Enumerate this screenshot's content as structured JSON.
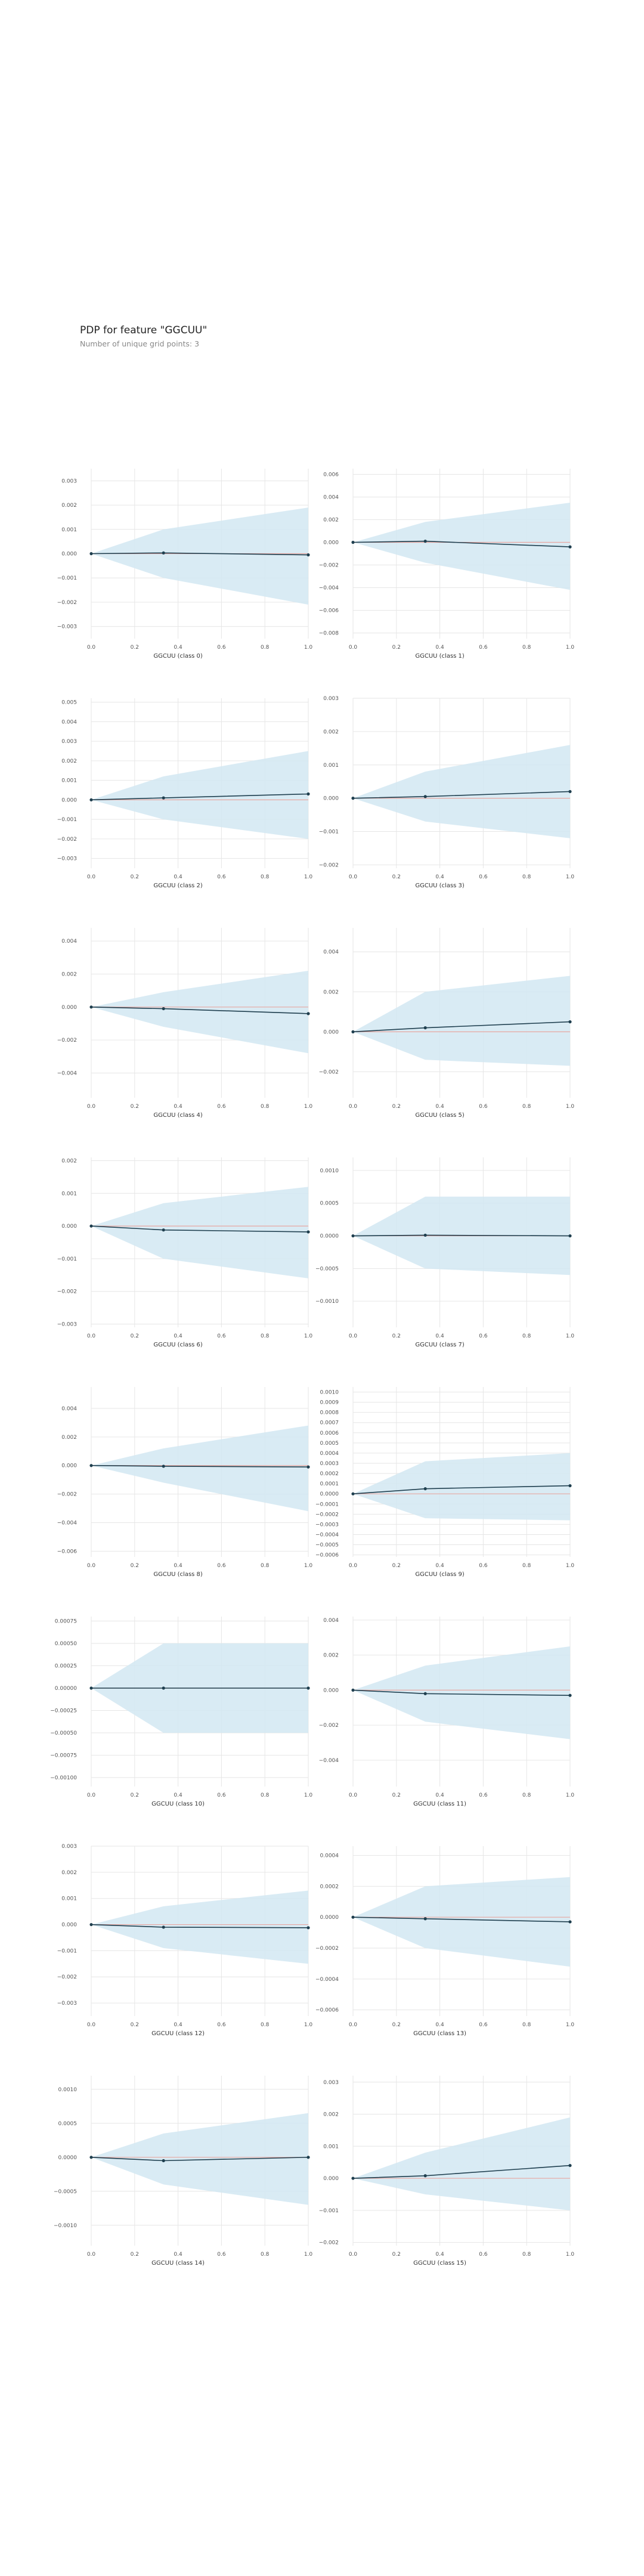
{
  "header": {
    "title": "PDP for feature \"GGCUU\"",
    "subtitle": "Number of unique grid points: 3"
  },
  "colors": {
    "band": "#d2e8f2",
    "line": "#1f3f4f",
    "zero_line": "#e8a7a1",
    "grid": "#e6e6e6"
  },
  "chart_data": [
    {
      "type": "line",
      "xlabel": "GGCUU (class 0)",
      "x": [
        0,
        0.333,
        1
      ],
      "y": [
        0,
        3e-05,
        -5e-05
      ],
      "upper": [
        0,
        0.001,
        0.0019
      ],
      "lower": [
        0,
        -0.001,
        -0.0021
      ],
      "yticks": [
        -0.003,
        -0.002,
        -0.001,
        0,
        0.001,
        0.002,
        0.003
      ],
      "ytick_labels": [
        "−0.003",
        "−0.002",
        "−0.001",
        "0.000",
        "0.001",
        "0.002",
        "0.003"
      ],
      "ylim": [
        -0.0035,
        0.0035
      ],
      "xticks": [
        0,
        0.2,
        0.4,
        0.6,
        0.8,
        1
      ],
      "xtick_labels": [
        "0.0",
        "0.2",
        "0.4",
        "0.6",
        "0.8",
        "1.0"
      ],
      "grid": true
    },
    {
      "type": "line",
      "xlabel": "GGCUU (class 1)",
      "x": [
        0,
        0.333,
        1
      ],
      "y": [
        0,
        0.0001,
        -0.0004
      ],
      "upper": [
        0,
        0.0018,
        0.0035
      ],
      "lower": [
        0,
        -0.0018,
        -0.0042
      ],
      "yticks": [
        -0.008,
        -0.006,
        -0.004,
        -0.002,
        0,
        0.002,
        0.004,
        0.006
      ],
      "ytick_labels": [
        "−0.008",
        "−0.006",
        "−0.004",
        "−0.002",
        "0.000",
        "0.002",
        "0.004",
        "0.006"
      ],
      "ylim": [
        -0.0085,
        0.0065
      ],
      "xticks": [
        0,
        0.2,
        0.4,
        0.6,
        0.8,
        1
      ],
      "xtick_labels": [
        "0.0",
        "0.2",
        "0.4",
        "0.6",
        "0.8",
        "1.0"
      ],
      "grid": true
    },
    {
      "type": "line",
      "xlabel": "GGCUU (class 2)",
      "x": [
        0,
        0.333,
        1
      ],
      "y": [
        0,
        0.0001,
        0.0003
      ],
      "upper": [
        0,
        0.0012,
        0.0025
      ],
      "lower": [
        0,
        -0.001,
        -0.002
      ],
      "yticks": [
        -0.003,
        -0.002,
        -0.001,
        0,
        0.001,
        0.002,
        0.003,
        0.004,
        0.005
      ],
      "ytick_labels": [
        "−0.003",
        "−0.002",
        "−0.001",
        "0.000",
        "0.001",
        "0.002",
        "0.003",
        "0.004",
        "0.005"
      ],
      "ylim": [
        -0.0035,
        0.0052
      ],
      "xticks": [
        0,
        0.2,
        0.4,
        0.6,
        0.8,
        1
      ],
      "xtick_labels": [
        "0.0",
        "0.2",
        "0.4",
        "0.6",
        "0.8",
        "1.0"
      ],
      "grid": true
    },
    {
      "type": "line",
      "xlabel": "GGCUU (class 3)",
      "x": [
        0,
        0.333,
        1
      ],
      "y": [
        0,
        5e-05,
        0.0002
      ],
      "upper": [
        0,
        0.0008,
        0.0016
      ],
      "lower": [
        0,
        -0.0007,
        -0.0012
      ],
      "yticks": [
        -0.002,
        -0.001,
        0,
        0.001,
        0.002,
        0.003
      ],
      "ytick_labels": [
        "−0.002",
        "−0.001",
        "0.000",
        "0.001",
        "0.002",
        "0.003"
      ],
      "ylim": [
        -0.0021,
        0.003
      ],
      "xticks": [
        0,
        0.2,
        0.4,
        0.6,
        0.8,
        1
      ],
      "xtick_labels": [
        "0.0",
        "0.2",
        "0.4",
        "0.6",
        "0.8",
        "1.0"
      ],
      "grid": true
    },
    {
      "type": "line",
      "xlabel": "GGCUU (class 4)",
      "x": [
        0,
        0.333,
        1
      ],
      "y": [
        0,
        -0.0001,
        -0.0004
      ],
      "upper": [
        0,
        0.0009,
        0.0022
      ],
      "lower": [
        0,
        -0.0012,
        -0.0028
      ],
      "yticks": [
        -0.004,
        -0.002,
        0,
        0.002,
        0.004
      ],
      "ytick_labels": [
        "−0.004",
        "−0.002",
        "0.000",
        "0.002",
        "0.004"
      ],
      "ylim": [
        -0.0055,
        0.0048
      ],
      "xticks": [
        0,
        0.2,
        0.4,
        0.6,
        0.8,
        1
      ],
      "xtick_labels": [
        "0.0",
        "0.2",
        "0.4",
        "0.6",
        "0.8",
        "1.0"
      ],
      "grid": true
    },
    {
      "type": "line",
      "xlabel": "GGCUU (class 5)",
      "x": [
        0,
        0.333,
        1
      ],
      "y": [
        0,
        0.0002,
        0.0005
      ],
      "upper": [
        0,
        0.002,
        0.0028
      ],
      "lower": [
        0,
        -0.0014,
        -0.0017
      ],
      "yticks": [
        -0.002,
        0,
        0.002,
        0.004
      ],
      "ytick_labels": [
        "−0.002",
        "0.000",
        "0.002",
        "0.004"
      ],
      "ylim": [
        -0.0033,
        0.0052
      ],
      "xticks": [
        0,
        0.2,
        0.4,
        0.6,
        0.8,
        1
      ],
      "xtick_labels": [
        "0.0",
        "0.2",
        "0.4",
        "0.6",
        "0.8",
        "1.0"
      ],
      "grid": true
    },
    {
      "type": "line",
      "xlabel": "GGCUU (class 6)",
      "x": [
        0,
        0.333,
        1
      ],
      "y": [
        0,
        -0.00012,
        -0.00018
      ],
      "upper": [
        0,
        0.0007,
        0.0012
      ],
      "lower": [
        0,
        -0.001,
        -0.0016
      ],
      "yticks": [
        -0.003,
        -0.002,
        -0.001,
        0,
        0.001,
        0.002
      ],
      "ytick_labels": [
        "−0.003",
        "−0.002",
        "−0.001",
        "0.000",
        "0.001",
        "0.002"
      ],
      "ylim": [
        -0.0031,
        0.0021
      ],
      "xticks": [
        0,
        0.2,
        0.4,
        0.6,
        0.8,
        1
      ],
      "xtick_labels": [
        "0.0",
        "0.2",
        "0.4",
        "0.6",
        "0.8",
        "1.0"
      ],
      "grid": true
    },
    {
      "type": "line",
      "xlabel": "GGCUU (class 7)",
      "x": [
        0,
        0.333,
        1
      ],
      "y": [
        0,
        1e-05,
        0
      ],
      "upper": [
        0,
        0.0006,
        0.0006
      ],
      "lower": [
        0,
        -0.0005,
        -0.0006
      ],
      "yticks": [
        -0.001,
        -0.0005,
        0,
        0.0005,
        0.001
      ],
      "ytick_labels": [
        "−0.0010",
        "−0.0005",
        "0.0000",
        "0.0005",
        "0.0010"
      ],
      "ylim": [
        -0.0014,
        0.0012
      ],
      "xticks": [
        0,
        0.2,
        0.4,
        0.6,
        0.8,
        1
      ],
      "xtick_labels": [
        "0.0",
        "0.2",
        "0.4",
        "0.6",
        "0.8",
        "1.0"
      ],
      "grid": true
    },
    {
      "type": "line",
      "xlabel": "GGCUU (class 8)",
      "x": [
        0,
        0.333,
        1
      ],
      "y": [
        0,
        -5e-05,
        -0.0001
      ],
      "upper": [
        0,
        0.0012,
        0.0028
      ],
      "lower": [
        0,
        -0.0012,
        -0.0032
      ],
      "yticks": [
        -0.006,
        -0.004,
        -0.002,
        0,
        0.002,
        0.004
      ],
      "ytick_labels": [
        "−0.006",
        "−0.004",
        "−0.002",
        "0.000",
        "0.002",
        "0.004"
      ],
      "ylim": [
        -0.0064,
        0.0055
      ],
      "xticks": [
        0,
        0.2,
        0.4,
        0.6,
        0.8,
        1
      ],
      "xtick_labels": [
        "0.0",
        "0.2",
        "0.4",
        "0.6",
        "0.8",
        "1.0"
      ],
      "grid": true
    },
    {
      "type": "line",
      "xlabel": "GGCUU (class 9)",
      "x": [
        0,
        0.333,
        1
      ],
      "y": [
        0,
        5e-05,
        8e-05
      ],
      "upper": [
        0,
        0.00032,
        0.0004
      ],
      "lower": [
        0,
        -0.00024,
        -0.00026
      ],
      "yticks": [
        -0.0006,
        -0.0005,
        -0.0004,
        -0.0003,
        -0.0002,
        -0.0001,
        0,
        0.0001,
        0.0002,
        0.0003,
        0.0004,
        0.0005,
        0.0006,
        0.0007,
        0.0008,
        0.0009,
        0.001
      ],
      "ytick_labels": [
        "−0.0006",
        "−0.0005",
        "−0.0004",
        "−0.0003",
        "−0.0002",
        "−0.0001",
        "0.0000",
        "0.0001",
        "0.0002",
        "0.0003",
        "0.0004",
        "0.0005",
        "0.0006",
        "0.0007",
        "0.0008",
        "0.0009",
        "0.0010"
      ],
      "ylim": [
        -0.00062,
        0.00105
      ],
      "xticks": [
        0,
        0.2,
        0.4,
        0.6,
        0.8,
        1
      ],
      "xtick_labels": [
        "0.0",
        "0.2",
        "0.4",
        "0.6",
        "0.8",
        "1.0"
      ],
      "grid": true
    },
    {
      "type": "line",
      "xlabel": "GGCUU (class 10)",
      "x": [
        0,
        0.333,
        1
      ],
      "y": [
        0,
        0,
        0
      ],
      "upper": [
        0,
        0.0005,
        0.0005
      ],
      "lower": [
        0,
        -0.0005,
        -0.0005
      ],
      "yticks": [
        -0.001,
        -0.00075,
        -0.0005,
        -0.00025,
        0,
        0.00025,
        0.0005,
        0.00075
      ],
      "ytick_labels": [
        "−0.00100",
        "−0.00075",
        "−0.00050",
        "−0.00025",
        "0.00000",
        "0.00025",
        "0.00050",
        "0.00075"
      ],
      "ylim": [
        -0.0011,
        0.0008
      ],
      "xticks": [
        0,
        0.2,
        0.4,
        0.6,
        0.8,
        1
      ],
      "xtick_labels": [
        "0.0",
        "0.2",
        "0.4",
        "0.6",
        "0.8",
        "1.0"
      ],
      "grid": true
    },
    {
      "type": "line",
      "xlabel": "GGCUU (class 11)",
      "x": [
        0,
        0.333,
        1
      ],
      "y": [
        0,
        -0.0002,
        -0.0003
      ],
      "upper": [
        0,
        0.0014,
        0.0025
      ],
      "lower": [
        0,
        -0.0018,
        -0.0028
      ],
      "yticks": [
        -0.004,
        -0.002,
        0,
        0.002,
        0.004
      ],
      "ytick_labels": [
        "−0.004",
        "−0.002",
        "0.000",
        "0.002",
        "0.004"
      ],
      "ylim": [
        -0.0055,
        0.0042
      ],
      "xticks": [
        0,
        0.2,
        0.4,
        0.6,
        0.8,
        1
      ],
      "xtick_labels": [
        "0.0",
        "0.2",
        "0.4",
        "0.6",
        "0.8",
        "1.0"
      ],
      "grid": true
    },
    {
      "type": "line",
      "xlabel": "GGCUU (class 12)",
      "x": [
        0,
        0.333,
        1
      ],
      "y": [
        0,
        -0.0001,
        -0.00012
      ],
      "upper": [
        0,
        0.0007,
        0.0013
      ],
      "lower": [
        0,
        -0.0009,
        -0.0015
      ],
      "yticks": [
        -0.003,
        -0.002,
        -0.001,
        0,
        0.001,
        0.002,
        0.003
      ],
      "ytick_labels": [
        "−0.003",
        "−0.002",
        "−0.001",
        "0.000",
        "0.001",
        "0.002",
        "0.003"
      ],
      "ylim": [
        -0.0035,
        0.003
      ],
      "xticks": [
        0,
        0.2,
        0.4,
        0.6,
        0.8,
        1
      ],
      "xtick_labels": [
        "0.0",
        "0.2",
        "0.4",
        "0.6",
        "0.8",
        "1.0"
      ],
      "grid": true
    },
    {
      "type": "line",
      "xlabel": "GGCUU (class 13)",
      "x": [
        0,
        0.333,
        1
      ],
      "y": [
        0,
        -1e-05,
        -3e-05
      ],
      "upper": [
        0,
        0.0002,
        0.00026
      ],
      "lower": [
        0,
        -0.0002,
        -0.00032
      ],
      "yticks": [
        -0.0006,
        -0.0004,
        -0.0002,
        0,
        0.0002,
        0.0004
      ],
      "ytick_labels": [
        "−0.0006",
        "−0.0004",
        "−0.0002",
        "0.0000",
        "0.0002",
        "0.0004"
      ],
      "ylim": [
        -0.00064,
        0.00046
      ],
      "xticks": [
        0,
        0.2,
        0.4,
        0.6,
        0.8,
        1
      ],
      "xtick_labels": [
        "0.0",
        "0.2",
        "0.4",
        "0.6",
        "0.8",
        "1.0"
      ],
      "grid": true
    },
    {
      "type": "line",
      "xlabel": "GGCUU (class 14)",
      "x": [
        0,
        0.333,
        1
      ],
      "y": [
        0,
        -5e-05,
        0
      ],
      "upper": [
        0,
        0.00035,
        0.00065
      ],
      "lower": [
        0,
        -0.0004,
        -0.0007
      ],
      "yticks": [
        -0.001,
        -0.0005,
        0,
        0.0005,
        0.001
      ],
      "ytick_labels": [
        "−0.0010",
        "−0.0005",
        "0.0000",
        "0.0005",
        "0.0010"
      ],
      "ylim": [
        -0.0013,
        0.0012
      ],
      "xticks": [
        0,
        0.2,
        0.4,
        0.6,
        0.8,
        1
      ],
      "xtick_labels": [
        "0.0",
        "0.2",
        "0.4",
        "0.6",
        "0.8",
        "1.0"
      ],
      "grid": true
    },
    {
      "type": "line",
      "xlabel": "GGCUU (class 15)",
      "x": [
        0,
        0.333,
        1
      ],
      "y": [
        0,
        8e-05,
        0.0004
      ],
      "upper": [
        0,
        0.0008,
        0.0019
      ],
      "lower": [
        0,
        -0.0005,
        -0.001
      ],
      "yticks": [
        -0.002,
        -0.001,
        0,
        0.001,
        0.002,
        0.003
      ],
      "ytick_labels": [
        "−0.002",
        "−0.001",
        "0.000",
        "0.001",
        "0.002",
        "0.003"
      ],
      "ylim": [
        -0.0021,
        0.0032
      ],
      "xticks": [
        0,
        0.2,
        0.4,
        0.6,
        0.8,
        1
      ],
      "xtick_labels": [
        "0.0",
        "0.2",
        "0.4",
        "0.6",
        "0.8",
        "1.0"
      ],
      "grid": true
    }
  ]
}
